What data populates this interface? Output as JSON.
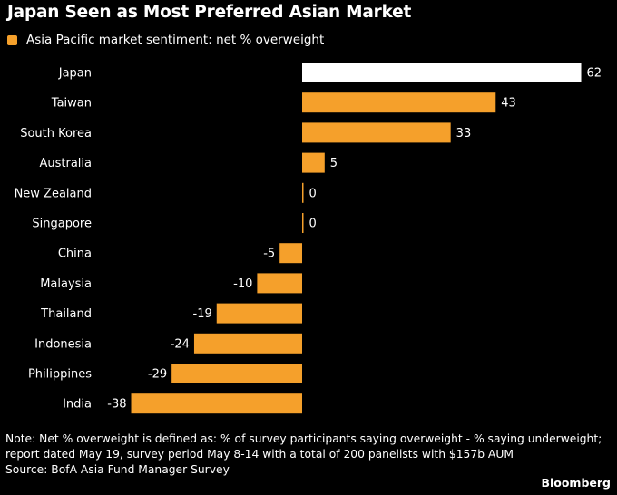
{
  "header": {
    "title": "Japan Seen as Most Preferred Asian Market"
  },
  "legend": {
    "label": "Asia Pacific market sentiment: net % overweight"
  },
  "colors": {
    "background": "#000000",
    "bar": "#F5A02B",
    "highlight_bar": "#FFFFFF",
    "text": "#FFFFFF"
  },
  "chart_data": {
    "type": "bar",
    "orientation": "horizontal",
    "categories": [
      "Japan",
      "Taiwan",
      "South Korea",
      "Australia",
      "New Zealand",
      "Singapore",
      "China",
      "Malaysia",
      "Thailand",
      "Indonesia",
      "Philippines",
      "India"
    ],
    "series": [
      {
        "name": "Asia Pacific market sentiment: net % overweight",
        "values": [
          62,
          43,
          33,
          5,
          0,
          0,
          -5,
          -10,
          -19,
          -24,
          -29,
          -38
        ]
      }
    ],
    "data_labels": [
      "62",
      "43",
      "33",
      "5",
      "0",
      "0",
      "-5",
      "-10",
      "-19",
      "-24",
      "-29",
      "-38"
    ],
    "highlight": "Japan",
    "title": "Japan Seen as Most Preferred Asian Market",
    "xlabel": "",
    "ylabel": "",
    "xlim": [
      -40,
      64
    ],
    "grid": false,
    "legend_position": "top-left"
  },
  "footer": {
    "note_line1": "Note: Net % overweight is defined as: % of survey participants saying overweight - % saying underweight;",
    "note_line2": "report dated May 19, survey period May 8-14 with a total of 200 panelists with $157b AUM",
    "source": "Source: BofA Asia Fund Manager Survey",
    "brand": "Bloomberg"
  }
}
